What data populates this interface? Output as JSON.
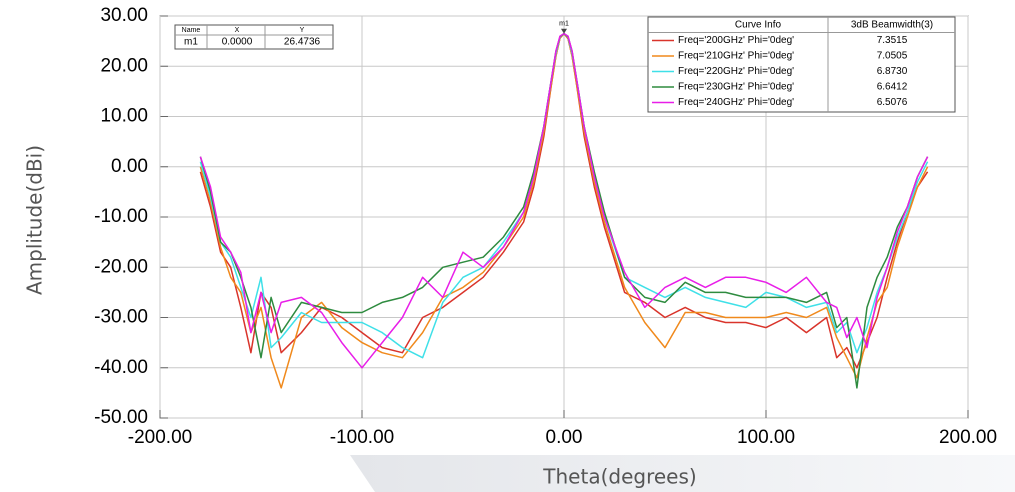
{
  "chart_data": {
    "type": "line",
    "x_label": "Theta(degrees)",
    "y_label": "Amplitude(dBi)",
    "xlim": [
      -200,
      200
    ],
    "ylim": [
      -50,
      30
    ],
    "xticks": [
      {
        "value": -200,
        "label": "-200.00"
      },
      {
        "value": -100,
        "label": "-100.00"
      },
      {
        "value": 0,
        "label": "0.00"
      },
      {
        "value": 100,
        "label": "100.00"
      },
      {
        "value": 200,
        "label": "200.00"
      }
    ],
    "yticks": [
      {
        "value": -50,
        "label": "-50.00"
      },
      {
        "value": -40,
        "label": "-40.00"
      },
      {
        "value": -30,
        "label": "-30.00"
      },
      {
        "value": -20,
        "label": "-20.00"
      },
      {
        "value": -10,
        "label": "-10.00"
      },
      {
        "value": 0,
        "label": "0.00"
      },
      {
        "value": 10,
        "label": "10.00"
      },
      {
        "value": 20,
        "label": "20.00"
      },
      {
        "value": 30,
        "label": "30.00"
      }
    ],
    "grid": true,
    "legend_title": "Curve Info",
    "legend_value_title": "3dB Beamwidth(3)",
    "x": [
      -180,
      -175,
      -170,
      -165,
      -160,
      -155,
      -150,
      -145,
      -140,
      -130,
      -120,
      -110,
      -100,
      -90,
      -80,
      -70,
      -60,
      -50,
      -40,
      -30,
      -20,
      -15,
      -10,
      -6,
      -4,
      -2,
      0,
      2,
      4,
      6,
      10,
      15,
      20,
      30,
      40,
      50,
      60,
      70,
      80,
      90,
      100,
      110,
      120,
      130,
      135,
      140,
      145,
      150,
      155,
      160,
      165,
      170,
      175,
      180
    ],
    "series": [
      {
        "name": "Freq='200GHz' Phi='0deg'",
        "color": "#d9342b",
        "beamwidth": "7.3515",
        "values": [
          -1,
          -8,
          -17,
          -20,
          -28,
          -37,
          -25,
          -28,
          -37,
          -33,
          -28,
          -30,
          -33,
          -36,
          -37,
          -30,
          -28,
          -25,
          -22,
          -17,
          -11,
          -4,
          6,
          17,
          22,
          25.6,
          26.5,
          25.5,
          22,
          17,
          6,
          -4,
          -12,
          -25,
          -27,
          -30,
          -28,
          -30,
          -31,
          -31,
          -32,
          -30,
          -33,
          -30,
          -38,
          -36,
          -40,
          -35,
          -30,
          -22,
          -15,
          -9,
          -4,
          -1
        ]
      },
      {
        "name": "Freq='210GHz' Phi='0deg'",
        "color": "#f0891c",
        "beamwidth": "7.0505",
        "values": [
          0,
          -7,
          -16,
          -22,
          -25,
          -33,
          -28,
          -38,
          -44,
          -30,
          -27,
          -32,
          -35,
          -37,
          -38,
          -33,
          -26,
          -24,
          -21,
          -16,
          -10,
          -3,
          7,
          17,
          22,
          25.6,
          26.5,
          25.6,
          22,
          17,
          7,
          -3,
          -11,
          -24,
          -31,
          -36,
          -29,
          -29,
          -30,
          -30,
          -30,
          -29,
          -30,
          -28,
          -34,
          -38,
          -42,
          -34,
          -27,
          -24,
          -16,
          -10,
          -4,
          0
        ]
      },
      {
        "name": "Freq='220GHz' Phi='0deg'",
        "color": "#3fe0e8",
        "beamwidth": "6.8730",
        "values": [
          1,
          -6,
          -15,
          -18,
          -24,
          -30,
          -22,
          -36,
          -34,
          -29,
          -31,
          -31,
          -31,
          -33,
          -36,
          -38,
          -27,
          -22,
          -20,
          -15,
          -9,
          -2,
          8,
          18,
          22.5,
          25.8,
          26.5,
          25.8,
          22.5,
          18,
          8,
          -2,
          -10,
          -22,
          -24,
          -26,
          -24,
          -26,
          -27,
          -28,
          -25,
          -26,
          -28,
          -27,
          -33,
          -31,
          -37,
          -32,
          -25,
          -20,
          -14,
          -9,
          -3,
          1
        ]
      },
      {
        "name": "Freq='230GHz' Phi='0deg'",
        "color": "#2e8b3f",
        "beamwidth": "6.6412",
        "values": [
          2,
          -5,
          -15,
          -17,
          -22,
          -28,
          -38,
          -26,
          -33,
          -27,
          -28,
          -29,
          -29,
          -27,
          -26,
          -24,
          -20,
          -19,
          -18,
          -14,
          -8,
          -1,
          8,
          18,
          23,
          25.9,
          26.5,
          25.9,
          23,
          18,
          8,
          -1,
          -9,
          -22,
          -26,
          -27,
          -23,
          -25,
          -25,
          -26,
          -26,
          -26,
          -27,
          -25,
          -32,
          -30,
          -44,
          -28,
          -22,
          -18,
          -12,
          -8,
          -2,
          2
        ]
      },
      {
        "name": "Freq='240GHz' Phi='0deg'",
        "color": "#e81ee8",
        "beamwidth": "6.5076",
        "values": [
          2,
          -4,
          -14,
          -17,
          -21,
          -33,
          -25,
          -33,
          -27,
          -26,
          -29,
          -35,
          -40,
          -35,
          -30,
          -22,
          -26,
          -17,
          -20,
          -16,
          -9,
          -2,
          8,
          18,
          23,
          26,
          26.5,
          26,
          23,
          18,
          8,
          -2,
          -10,
          -21,
          -28,
          -24,
          -22,
          -24,
          -22,
          -22,
          -23,
          -25,
          -22,
          -27,
          -28,
          -34,
          -30,
          -36,
          -26,
          -20,
          -13,
          -8,
          -2,
          2
        ]
      }
    ],
    "marker": {
      "name": "m1",
      "x": 0,
      "y": 26.4736,
      "x_label": "0.0000"
    },
    "marker_table_headers": [
      "Name",
      "X",
      "Y"
    ]
  }
}
